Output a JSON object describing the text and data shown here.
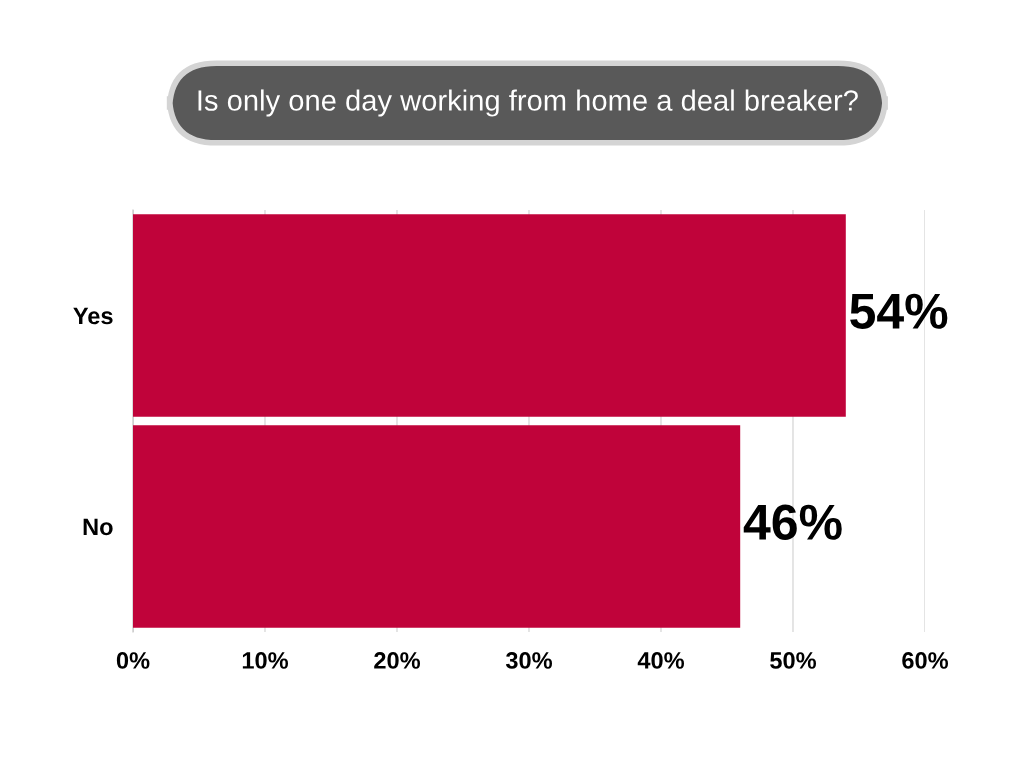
{
  "chart_data": {
    "type": "bar",
    "orientation": "horizontal",
    "title": "Is only one day working from home a deal breaker?",
    "categories": [
      "Yes",
      "No"
    ],
    "series": [
      {
        "color": "#c0033a",
        "values": [
          54,
          46
        ],
        "value_labels": [
          "54%",
          "46%"
        ]
      }
    ],
    "xlim": [
      0,
      60
    ],
    "xticks": [
      {
        "value": 0,
        "label": "0%"
      },
      {
        "value": 10,
        "label": "10%"
      },
      {
        "value": 20,
        "label": "20%"
      },
      {
        "value": 30,
        "label": "30%"
      },
      {
        "value": 40,
        "label": "40%"
      },
      {
        "value": 50,
        "label": "50%"
      },
      {
        "value": 60,
        "label": "60%"
      }
    ],
    "grid": "x",
    "legend": false
  }
}
